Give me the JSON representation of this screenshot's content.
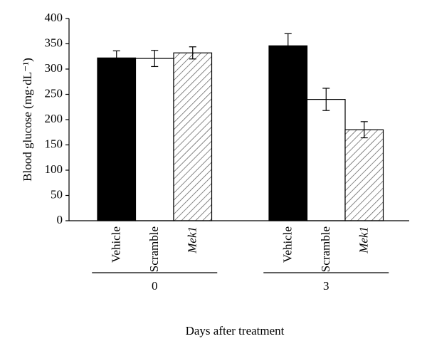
{
  "chart_data": {
    "type": "bar",
    "y_label": "Blood glucose (mg·dL⁻¹)",
    "x_label": "Days after treatment",
    "categories": [
      "0",
      "3"
    ],
    "series": [
      {
        "name": "Vehicle",
        "color": "#000000",
        "values": [
          322,
          346
        ],
        "errors": [
          14,
          24
        ]
      },
      {
        "name": "Scramble",
        "color": "#ffffff",
        "values": [
          321,
          240
        ],
        "errors": [
          16,
          22
        ]
      },
      {
        "name": "Mek1",
        "color": "#ffffff",
        "pattern": "hatch",
        "italic": true,
        "values": [
          332,
          180
        ],
        "errors": [
          12,
          16
        ]
      }
    ],
    "ylim": [
      0,
      400
    ],
    "yticks": [
      0,
      50,
      100,
      150,
      200,
      250,
      300,
      350,
      400
    ]
  }
}
